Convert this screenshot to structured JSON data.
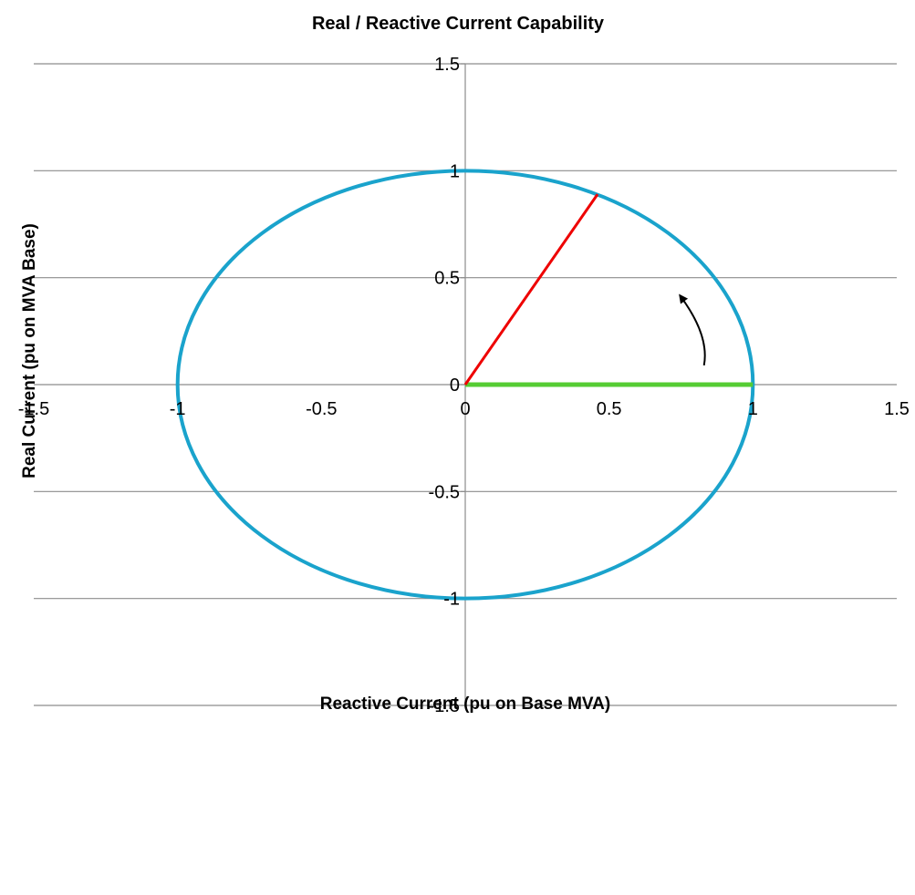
{
  "chart_data": {
    "type": "scatter",
    "title": "Real / Reactive Current Capability",
    "xlabel": "Reactive Current (pu on Base MVA)",
    "ylabel": "Real Current (pu on MVA Base)",
    "xlim": [
      -1.5,
      1.5
    ],
    "ylim": [
      -1.5,
      1.5
    ],
    "x_ticks": [
      "-1.5",
      "-1",
      "-0.5",
      "0",
      "0.5",
      "1",
      "1.5"
    ],
    "y_ticks": [
      "-1.5",
      "-1",
      "-0.5",
      "0",
      "0.5",
      "1",
      "1.5"
    ],
    "grid": {
      "horizontal": true,
      "vertical": false
    },
    "legend": "none",
    "series": [
      {
        "shape": "circle",
        "center": [
          0,
          0
        ],
        "radius": 1,
        "color": "#1aa3cc"
      },
      {
        "shape": "segment",
        "x": [
          0,
          1
        ],
        "y": [
          0,
          0
        ],
        "color": "#55cc33"
      },
      {
        "shape": "segment",
        "x": [
          0,
          0.46
        ],
        "y": [
          0,
          0.89
        ],
        "color": "#ee0000"
      }
    ],
    "annotations": [
      {
        "type": "curved-arrow",
        "from": [
          0.83,
          0.09
        ],
        "to": [
          0.75,
          0.41
        ],
        "color": "#000000"
      }
    ]
  }
}
